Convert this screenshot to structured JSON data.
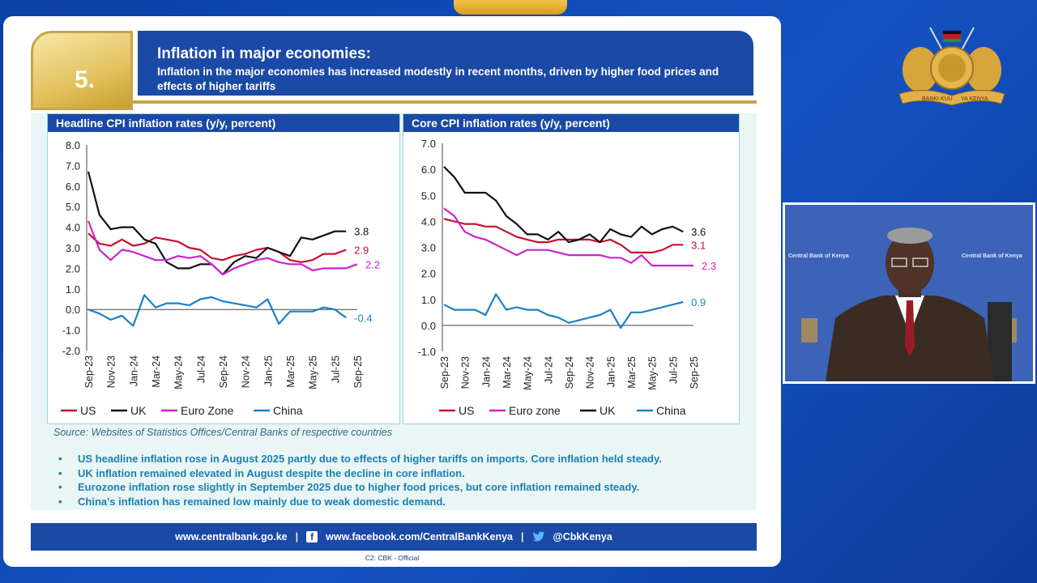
{
  "slide": {
    "number": "5.",
    "title": "Inflation in major economies:",
    "subtitle": "Inflation in the major economies has increased modestly in recent months, driven by higher food prices and effects of higher tariffs",
    "source": "Source: Websites of Statistics Offices/Central Banks of respective countries",
    "bullets": [
      "US headline inflation rose in August 2025 partly due to effects of higher tariffs on imports. Core inflation held steady.",
      "UK inflation remained elevated in August despite the decline in core inflation.",
      "Eurozone inflation rose slightly in September 2025 due to higher food prices, but core inflation remained steady.",
      "China’s inflation has remained low mainly due to weak domestic demand."
    ],
    "footer": {
      "website": "www.centralbank.go.ke",
      "facebook": "www.facebook.com/CentralBankKenya",
      "twitter": "@CbkKenya",
      "separator": "|"
    },
    "classification": "C2: CBK - Official"
  },
  "logo": {
    "ribbon_left": "BANKI KUU",
    "ribbon_right": "YA KENYA",
    "icon": "cbk-coat-of-arms"
  },
  "video": {
    "label_left": "Central Bank of Kenya",
    "label_right": "Central Bank of Kenya"
  },
  "colors": {
    "US": "#c8102e",
    "UK": "#111111",
    "Euro": "#cc22cc",
    "China": "#1a82c4",
    "title_band": "#1a49a6",
    "gold": "#c9a44a"
  },
  "chart_data": [
    {
      "type": "line",
      "title": "Headline CPI inflation rates (y/y, percent)",
      "categories": [
        "Sep-23",
        "Nov-23",
        "Jan-24",
        "Mar-24",
        "May-24",
        "Jul-24",
        "Sep-24",
        "Nov-24",
        "Jan-25",
        "Mar-25",
        "May-25",
        "Jul-25",
        "Sep-25"
      ],
      "x": [
        "Sep-23",
        "Oct-23",
        "Nov-23",
        "Dec-23",
        "Jan-24",
        "Feb-24",
        "Mar-24",
        "Apr-24",
        "May-24",
        "Jun-24",
        "Jul-24",
        "Aug-24",
        "Sep-24",
        "Oct-24",
        "Nov-24",
        "Dec-24",
        "Jan-25",
        "Feb-25",
        "Mar-25",
        "Apr-25",
        "May-25",
        "Jun-25",
        "Jul-25",
        "Aug-25",
        "Sep-25"
      ],
      "ylim": [
        -2.0,
        8.0
      ],
      "yticks": [
        "8.0",
        "7.0",
        "6.0",
        "5.0",
        "4.0",
        "3.0",
        "2.0",
        "1.0",
        "0.0",
        "-1.0",
        "-2.0"
      ],
      "series": [
        {
          "name": "US",
          "color": "#c8102e",
          "values": [
            3.7,
            3.2,
            3.1,
            3.4,
            3.1,
            3.2,
            3.5,
            3.4,
            3.3,
            3.0,
            2.9,
            2.5,
            2.4,
            2.6,
            2.7,
            2.9,
            3.0,
            2.8,
            2.4,
            2.3,
            2.4,
            2.7,
            2.7,
            2.9,
            null
          ],
          "end_label": "2.9"
        },
        {
          "name": "UK",
          "color": "#111111",
          "values": [
            6.7,
            4.6,
            3.9,
            4.0,
            4.0,
            3.4,
            3.2,
            2.3,
            2.0,
            2.0,
            2.2,
            2.2,
            1.7,
            2.3,
            2.6,
            2.5,
            3.0,
            2.8,
            2.6,
            3.5,
            3.4,
            3.6,
            3.8,
            3.8,
            null
          ],
          "end_label": "3.8"
        },
        {
          "name": "Euro  Zone",
          "color": "#cc22cc",
          "values": [
            4.3,
            2.9,
            2.4,
            2.9,
            2.8,
            2.6,
            2.4,
            2.4,
            2.6,
            2.5,
            2.6,
            2.2,
            1.7,
            2.0,
            2.2,
            2.4,
            2.5,
            2.3,
            2.2,
            2.2,
            1.9,
            2.0,
            2.0,
            2.0,
            2.2
          ],
          "end_label": "2.2"
        },
        {
          "name": "China",
          "color": "#1a82c4",
          "values": [
            0.0,
            -0.2,
            -0.5,
            -0.3,
            -0.8,
            0.7,
            0.1,
            0.3,
            0.3,
            0.2,
            0.5,
            0.6,
            0.4,
            0.3,
            0.2,
            0.1,
            0.5,
            -0.7,
            -0.1,
            -0.1,
            -0.1,
            0.1,
            0.0,
            -0.4,
            null
          ],
          "end_label": "-0.4"
        }
      ],
      "legend": [
        "US",
        "UK",
        "Euro  Zone",
        "China"
      ],
      "legend_position": "bottom"
    },
    {
      "type": "line",
      "title": "Core CPI inflation rates (y/y, percent)",
      "categories": [
        "Sep-23",
        "Nov-23",
        "Jan-24",
        "Mar-24",
        "May-24",
        "Jul-24",
        "Sep-24",
        "Nov-24",
        "Jan-25",
        "Mar-25",
        "May-25",
        "Jul-25",
        "Sep-25"
      ],
      "x": [
        "Sep-23",
        "Oct-23",
        "Nov-23",
        "Dec-23",
        "Jan-24",
        "Feb-24",
        "Mar-24",
        "Apr-24",
        "May-24",
        "Jun-24",
        "Jul-24",
        "Aug-24",
        "Sep-24",
        "Oct-24",
        "Nov-24",
        "Dec-24",
        "Jan-25",
        "Feb-25",
        "Mar-25",
        "Apr-25",
        "May-25",
        "Jun-25",
        "Jul-25",
        "Aug-25",
        "Sep-25"
      ],
      "ylim": [
        -1.0,
        7.0
      ],
      "yticks": [
        "7.0",
        "6.0",
        "5.0",
        "4.0",
        "3.0",
        "2.0",
        "1.0",
        "0.0",
        "-1.0"
      ],
      "series": [
        {
          "name": "US",
          "color": "#c8102e",
          "values": [
            4.1,
            4.0,
            3.9,
            3.9,
            3.8,
            3.8,
            3.6,
            3.4,
            3.3,
            3.2,
            3.2,
            3.3,
            3.3,
            3.3,
            3.3,
            3.2,
            3.3,
            3.1,
            2.8,
            2.8,
            2.8,
            2.9,
            3.1,
            3.1,
            null
          ],
          "end_label": "3.1"
        },
        {
          "name": "Euro zone",
          "color": "#cc22cc",
          "values": [
            4.5,
            4.2,
            3.6,
            3.4,
            3.3,
            3.1,
            2.9,
            2.7,
            2.9,
            2.9,
            2.9,
            2.8,
            2.7,
            2.7,
            2.7,
            2.7,
            2.6,
            2.6,
            2.4,
            2.7,
            2.3,
            2.3,
            2.3,
            2.3,
            2.3
          ],
          "end_label": "2.3"
        },
        {
          "name": "UK",
          "color": "#111111",
          "values": [
            6.1,
            5.7,
            5.1,
            5.1,
            5.1,
            4.8,
            4.2,
            3.9,
            3.5,
            3.5,
            3.3,
            3.6,
            3.2,
            3.3,
            3.5,
            3.2,
            3.7,
            3.5,
            3.4,
            3.8,
            3.5,
            3.7,
            3.8,
            3.6,
            null
          ],
          "end_label": "3.6"
        },
        {
          "name": "China",
          "color": "#1a82c4",
          "values": [
            0.8,
            0.6,
            0.6,
            0.6,
            0.4,
            1.2,
            0.6,
            0.7,
            0.6,
            0.6,
            0.4,
            0.3,
            0.1,
            0.2,
            0.3,
            0.4,
            0.6,
            -0.1,
            0.5,
            0.5,
            0.6,
            0.7,
            0.8,
            0.9,
            null
          ],
          "end_label": "0.9"
        }
      ],
      "legend": [
        "US",
        "Euro zone",
        "UK",
        "China"
      ],
      "legend_position": "bottom"
    }
  ]
}
